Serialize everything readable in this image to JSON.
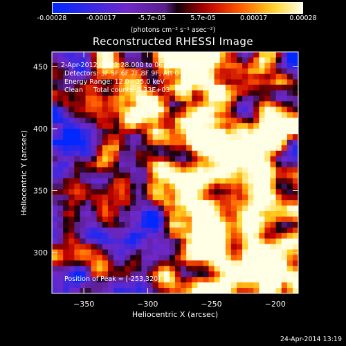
{
  "colorbar": {
    "tick_labels": [
      "-0.00028",
      "-0.00017",
      "-5.7e-05",
      "5.7e-05",
      "0.00017",
      "0.00028"
    ],
    "tick_values": [
      -0.00028,
      -0.00017,
      -5.7e-05,
      5.7e-05,
      0.00017,
      0.00028
    ],
    "range": [
      -0.00028,
      0.00028
    ],
    "units_label": "(photons cm⁻² s⁻¹ asec⁻²)"
  },
  "chart_data": {
    "type": "heatmap",
    "title": "Reconstructed RHESSI Image",
    "xlabel": "Heliocentric X (arcsec)",
    "ylabel": "Heliocentric Y (arcsec)",
    "xlim": [
      -375,
      -182
    ],
    "ylim": [
      267,
      462
    ],
    "x_ticks": [
      -350,
      -300,
      -250,
      -200
    ],
    "x_tick_labels": [
      "−350",
      "−300",
      "−250",
      "−200"
    ],
    "y_ticks": [
      300,
      350,
      400,
      450
    ],
    "y_tick_labels": [
      "300",
      "350",
      "400",
      "450"
    ],
    "annotations": [
      "2-Apr-2012 06:22:28.000 to 06:27:30.000",
      "Detectors: 3F 5F 6F 7F 8F 9F, Att 0",
      "Energy Range: 12.0 - 25.0 keV",
      "Clean     Total counts: 5.33E+03",
      "Position of Peak = [-253,320]"
    ],
    "peak_position": [
      -253,
      320
    ]
  },
  "footer": {
    "timestamp": "24-Apr-2014 13:19"
  }
}
